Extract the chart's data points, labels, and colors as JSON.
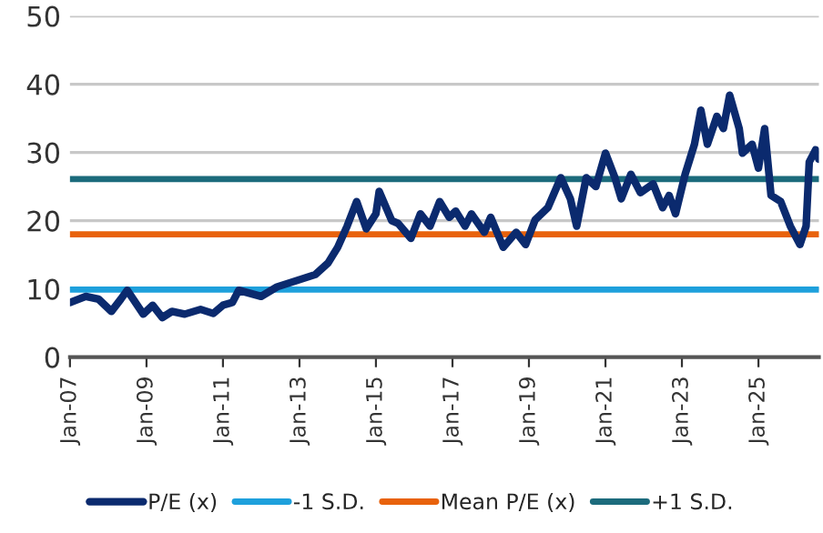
{
  "chart_data": {
    "type": "line",
    "x": [
      "2007-01",
      "2007-06",
      "2007-10",
      "2008-02",
      "2008-05",
      "2008-07",
      "2008-12",
      "2009-03",
      "2009-06",
      "2009-09",
      "2010-01",
      "2010-06",
      "2010-10",
      "2011-01",
      "2011-04",
      "2011-06",
      "2012-01",
      "2012-06",
      "2012-12",
      "2013-06",
      "2013-10",
      "2014-01",
      "2014-04",
      "2014-07",
      "2014-10",
      "2015-01",
      "2015-02",
      "2015-06",
      "2015-08",
      "2015-12",
      "2016-03",
      "2016-06",
      "2016-09",
      "2016-12",
      "2017-02",
      "2017-05",
      "2017-07",
      "2017-11",
      "2018-01",
      "2018-05",
      "2018-09",
      "2018-12",
      "2019-03",
      "2019-07",
      "2019-11",
      "2020-02",
      "2020-04",
      "2020-07",
      "2020-10",
      "2021-01",
      "2021-04",
      "2021-06",
      "2021-09",
      "2021-12",
      "2022-04",
      "2022-07",
      "2022-09",
      "2022-11",
      "2023-02",
      "2023-05",
      "2023-07",
      "2023-09",
      "2023-12",
      "2024-02",
      "2024-04",
      "2024-07",
      "2024-08",
      "2024-11",
      "2025-01",
      "2025-03",
      "2025-05",
      "2025-08",
      "2025-11",
      "2026-02",
      "2026-04",
      "2026-05",
      "2026-07",
      "2026-08"
    ],
    "series": [
      {
        "name": "P/E (x)",
        "color": "#0b2a6e",
        "values": [
          8.0,
          8.9,
          8.5,
          6.7,
          8.5,
          9.8,
          6.3,
          7.6,
          5.8,
          6.7,
          6.3,
          7.0,
          6.4,
          7.6,
          8.0,
          9.8,
          8.9,
          10.3,
          11.2,
          12.1,
          13.8,
          16.1,
          19.2,
          22.8,
          18.8,
          21.0,
          24.3,
          20.0,
          19.6,
          17.4,
          21.0,
          19.2,
          22.8,
          20.5,
          21.4,
          19.2,
          21.0,
          18.3,
          20.5,
          16.1,
          18.3,
          16.5,
          20.1,
          21.9,
          26.3,
          23.2,
          19.2,
          26.3,
          25.0,
          29.9,
          26.3,
          23.2,
          26.8,
          24.1,
          25.4,
          21.9,
          23.7,
          21.0,
          26.8,
          31.2,
          36.2,
          31.2,
          35.3,
          33.5,
          38.4,
          33.5,
          29.9,
          31.2,
          27.7,
          33.5,
          23.7,
          22.8,
          19.2,
          16.5,
          19.2,
          28.6,
          30.4,
          29.0
        ]
      }
    ],
    "ref_lines": [
      {
        "axis": "y",
        "value": 9.9,
        "label": "-1 S.D.",
        "color": "#1ea0dc"
      },
      {
        "axis": "y",
        "value": 18.0,
        "label": "Mean P/E (x)",
        "color": "#e8620c"
      },
      {
        "axis": "y",
        "value": 26.1,
        "label": "+1 S.D.",
        "color": "#1c6b7c"
      }
    ],
    "xlim": [
      "2007-01",
      "2026-08"
    ],
    "xticks": [
      {
        "value": "2007-01",
        "label": "Jan-07"
      },
      {
        "value": "2009-01",
        "label": "Jan-09"
      },
      {
        "value": "2011-01",
        "label": "Jan-11"
      },
      {
        "value": "2013-01",
        "label": "Jan-13"
      },
      {
        "value": "2015-01",
        "label": "Jan-15"
      },
      {
        "value": "2017-01",
        "label": "Jan-17"
      },
      {
        "value": "2019-01",
        "label": "Jan-19"
      },
      {
        "value": "2021-01",
        "label": "Jan-21"
      },
      {
        "value": "2023-01",
        "label": "Jan-23"
      },
      {
        "value": "2025-01",
        "label": "Jan-25"
      }
    ],
    "ylim": [
      0,
      50
    ],
    "yticks": [
      0,
      10,
      20,
      30,
      40,
      50
    ],
    "grid": "y",
    "legend": "bottom"
  }
}
